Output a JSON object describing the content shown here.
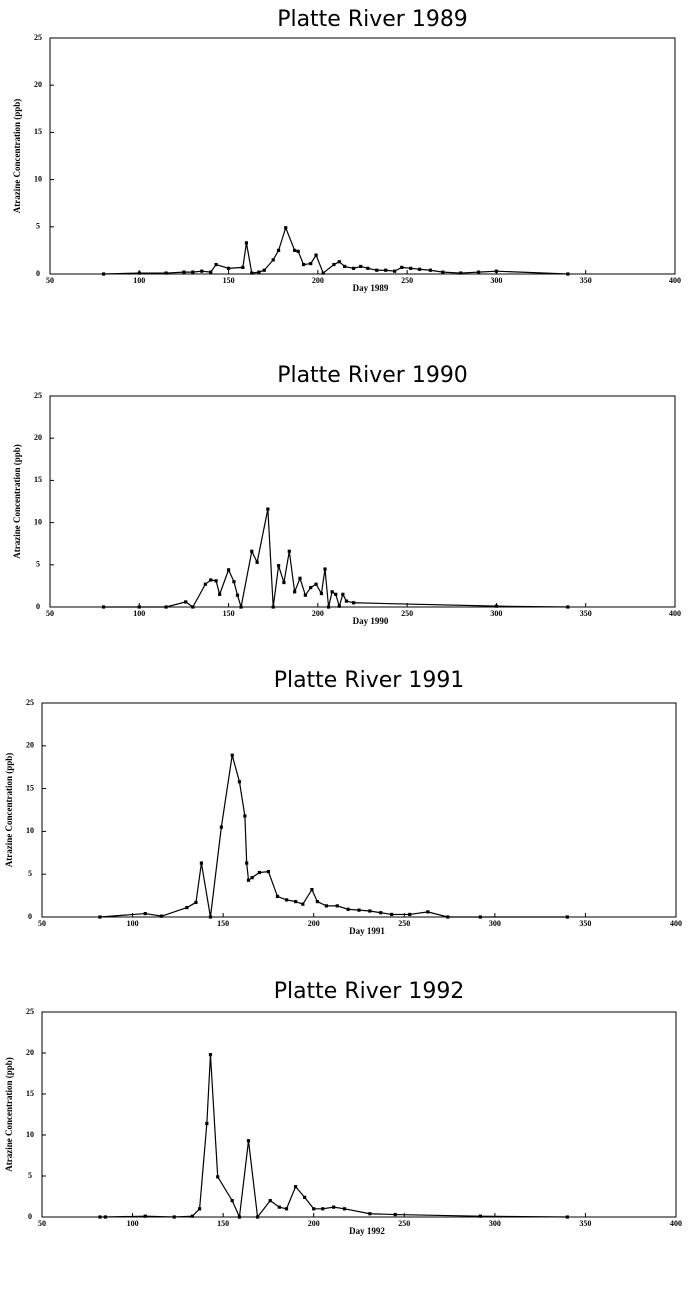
{
  "chart_data": [
    {
      "type": "line",
      "title": "Platte River 1989",
      "x_label": "Day 1989",
      "y_label": "Atrazine Concentration (ppb)",
      "color": "#000000",
      "marker": "square",
      "x": [
        80,
        100,
        115,
        125,
        130,
        135,
        140,
        143,
        150,
        158,
        160,
        163,
        167,
        170,
        175,
        178,
        182,
        187,
        189,
        192,
        196,
        199,
        203,
        209,
        212,
        215,
        220,
        224,
        228,
        233,
        238,
        243,
        247,
        252,
        257,
        263,
        270,
        280,
        290,
        300,
        340
      ],
      "values": [
        0,
        0.1,
        0.1,
        0.2,
        0.2,
        0.3,
        0.2,
        1.0,
        0.6,
        0.7,
        3.3,
        0.1,
        0.2,
        0.4,
        1.5,
        2.5,
        4.9,
        2.5,
        2.4,
        1.0,
        1.1,
        2.0,
        0.1,
        1.0,
        1.3,
        0.8,
        0.6,
        0.8,
        0.6,
        0.4,
        0.4,
        0.3,
        0.7,
        0.6,
        0.5,
        0.4,
        0.2,
        0.1,
        0.2,
        0.3,
        0
      ],
      "xlim": [
        50,
        400
      ],
      "xticks": [
        50,
        100,
        150,
        200,
        250,
        300,
        350,
        400
      ],
      "ylim": [
        0,
        25
      ],
      "yticks": [
        0,
        5,
        10,
        15,
        20,
        25
      ]
    },
    {
      "type": "line",
      "title": "Platte River 1990",
      "x_label": "Day 1990",
      "y_label": "Atrazine Concentration (ppb)",
      "color": "#000000",
      "marker": "square",
      "x": [
        80,
        100,
        115,
        126,
        130,
        137,
        140,
        143,
        145,
        150,
        153,
        155,
        157,
        163,
        166,
        172,
        175,
        178,
        181,
        184,
        187,
        190,
        193,
        196,
        199,
        202,
        204,
        206,
        208,
        210,
        212,
        214,
        216,
        220,
        300,
        340
      ],
      "values": [
        0,
        0,
        0,
        0.6,
        0,
        2.7,
        3.2,
        3.1,
        1.5,
        4.4,
        3.0,
        1.4,
        0,
        6.6,
        5.3,
        11.6,
        0,
        4.9,
        2.9,
        6.6,
        1.8,
        3.4,
        1.4,
        2.3,
        2.7,
        1.6,
        4.5,
        0,
        1.8,
        1.5,
        0.1,
        1.5,
        0.7,
        0.5,
        0.1,
        0
      ],
      "xlim": [
        50,
        400
      ],
      "xticks": [
        50,
        100,
        150,
        200,
        250,
        300,
        350,
        400
      ],
      "ylim": [
        0,
        25
      ],
      "yticks": [
        0,
        5,
        10,
        15,
        20,
        25
      ]
    },
    {
      "type": "line",
      "title": "Platte River 1991",
      "x_label": "Day 1991",
      "y_label": "Atrazine Concentration (ppb)",
      "color": "#000000",
      "marker": "square",
      "x": [
        82,
        107,
        116,
        130,
        135,
        138,
        143,
        149,
        155,
        159,
        162,
        163,
        164,
        166,
        170,
        175,
        180,
        185,
        190,
        194,
        199,
        202,
        207,
        213,
        219,
        225,
        231,
        237,
        243,
        253,
        263,
        274,
        292,
        340
      ],
      "values": [
        0,
        0.4,
        0.1,
        1.1,
        1.7,
        6.3,
        0,
        10.5,
        18.9,
        15.8,
        11.8,
        6.3,
        4.3,
        4.6,
        5.2,
        5.3,
        2.4,
        2.0,
        1.8,
        1.5,
        3.2,
        1.8,
        1.3,
        1.3,
        0.9,
        0.8,
        0.7,
        0.5,
        0.3,
        0.3,
        0.6,
        0,
        0,
        0
      ],
      "xlim": [
        50,
        400
      ],
      "xticks": [
        50,
        100,
        150,
        200,
        250,
        300,
        350,
        400
      ],
      "ylim": [
        0,
        25
      ],
      "yticks": [
        0,
        5,
        10,
        15,
        20,
        25
      ]
    },
    {
      "type": "line",
      "title": "Platte River 1992",
      "x_label": "Day 1992",
      "y_label": "Atrazine Concentration (ppb)",
      "color": "#000000",
      "marker": "square",
      "x": [
        82,
        85,
        107,
        123,
        133,
        137,
        141,
        143,
        147,
        155,
        159,
        164,
        169,
        176,
        181,
        185,
        190,
        195,
        200,
        205,
        211,
        217,
        231,
        245,
        292,
        340
      ],
      "values": [
        0,
        0,
        0.1,
        0,
        0.1,
        1.0,
        11.4,
        19.8,
        4.9,
        2.0,
        0,
        9.3,
        0,
        2.0,
        1.2,
        1.0,
        3.7,
        2.4,
        1.0,
        1.0,
        1.2,
        1.0,
        0.4,
        0.3,
        0.1,
        0
      ],
      "xlim": [
        50,
        400
      ],
      "xticks": [
        50,
        100,
        150,
        200,
        250,
        300,
        350,
        400
      ],
      "ylim": [
        0,
        25
      ],
      "yticks": [
        0,
        5,
        10,
        15,
        20,
        25
      ]
    }
  ]
}
